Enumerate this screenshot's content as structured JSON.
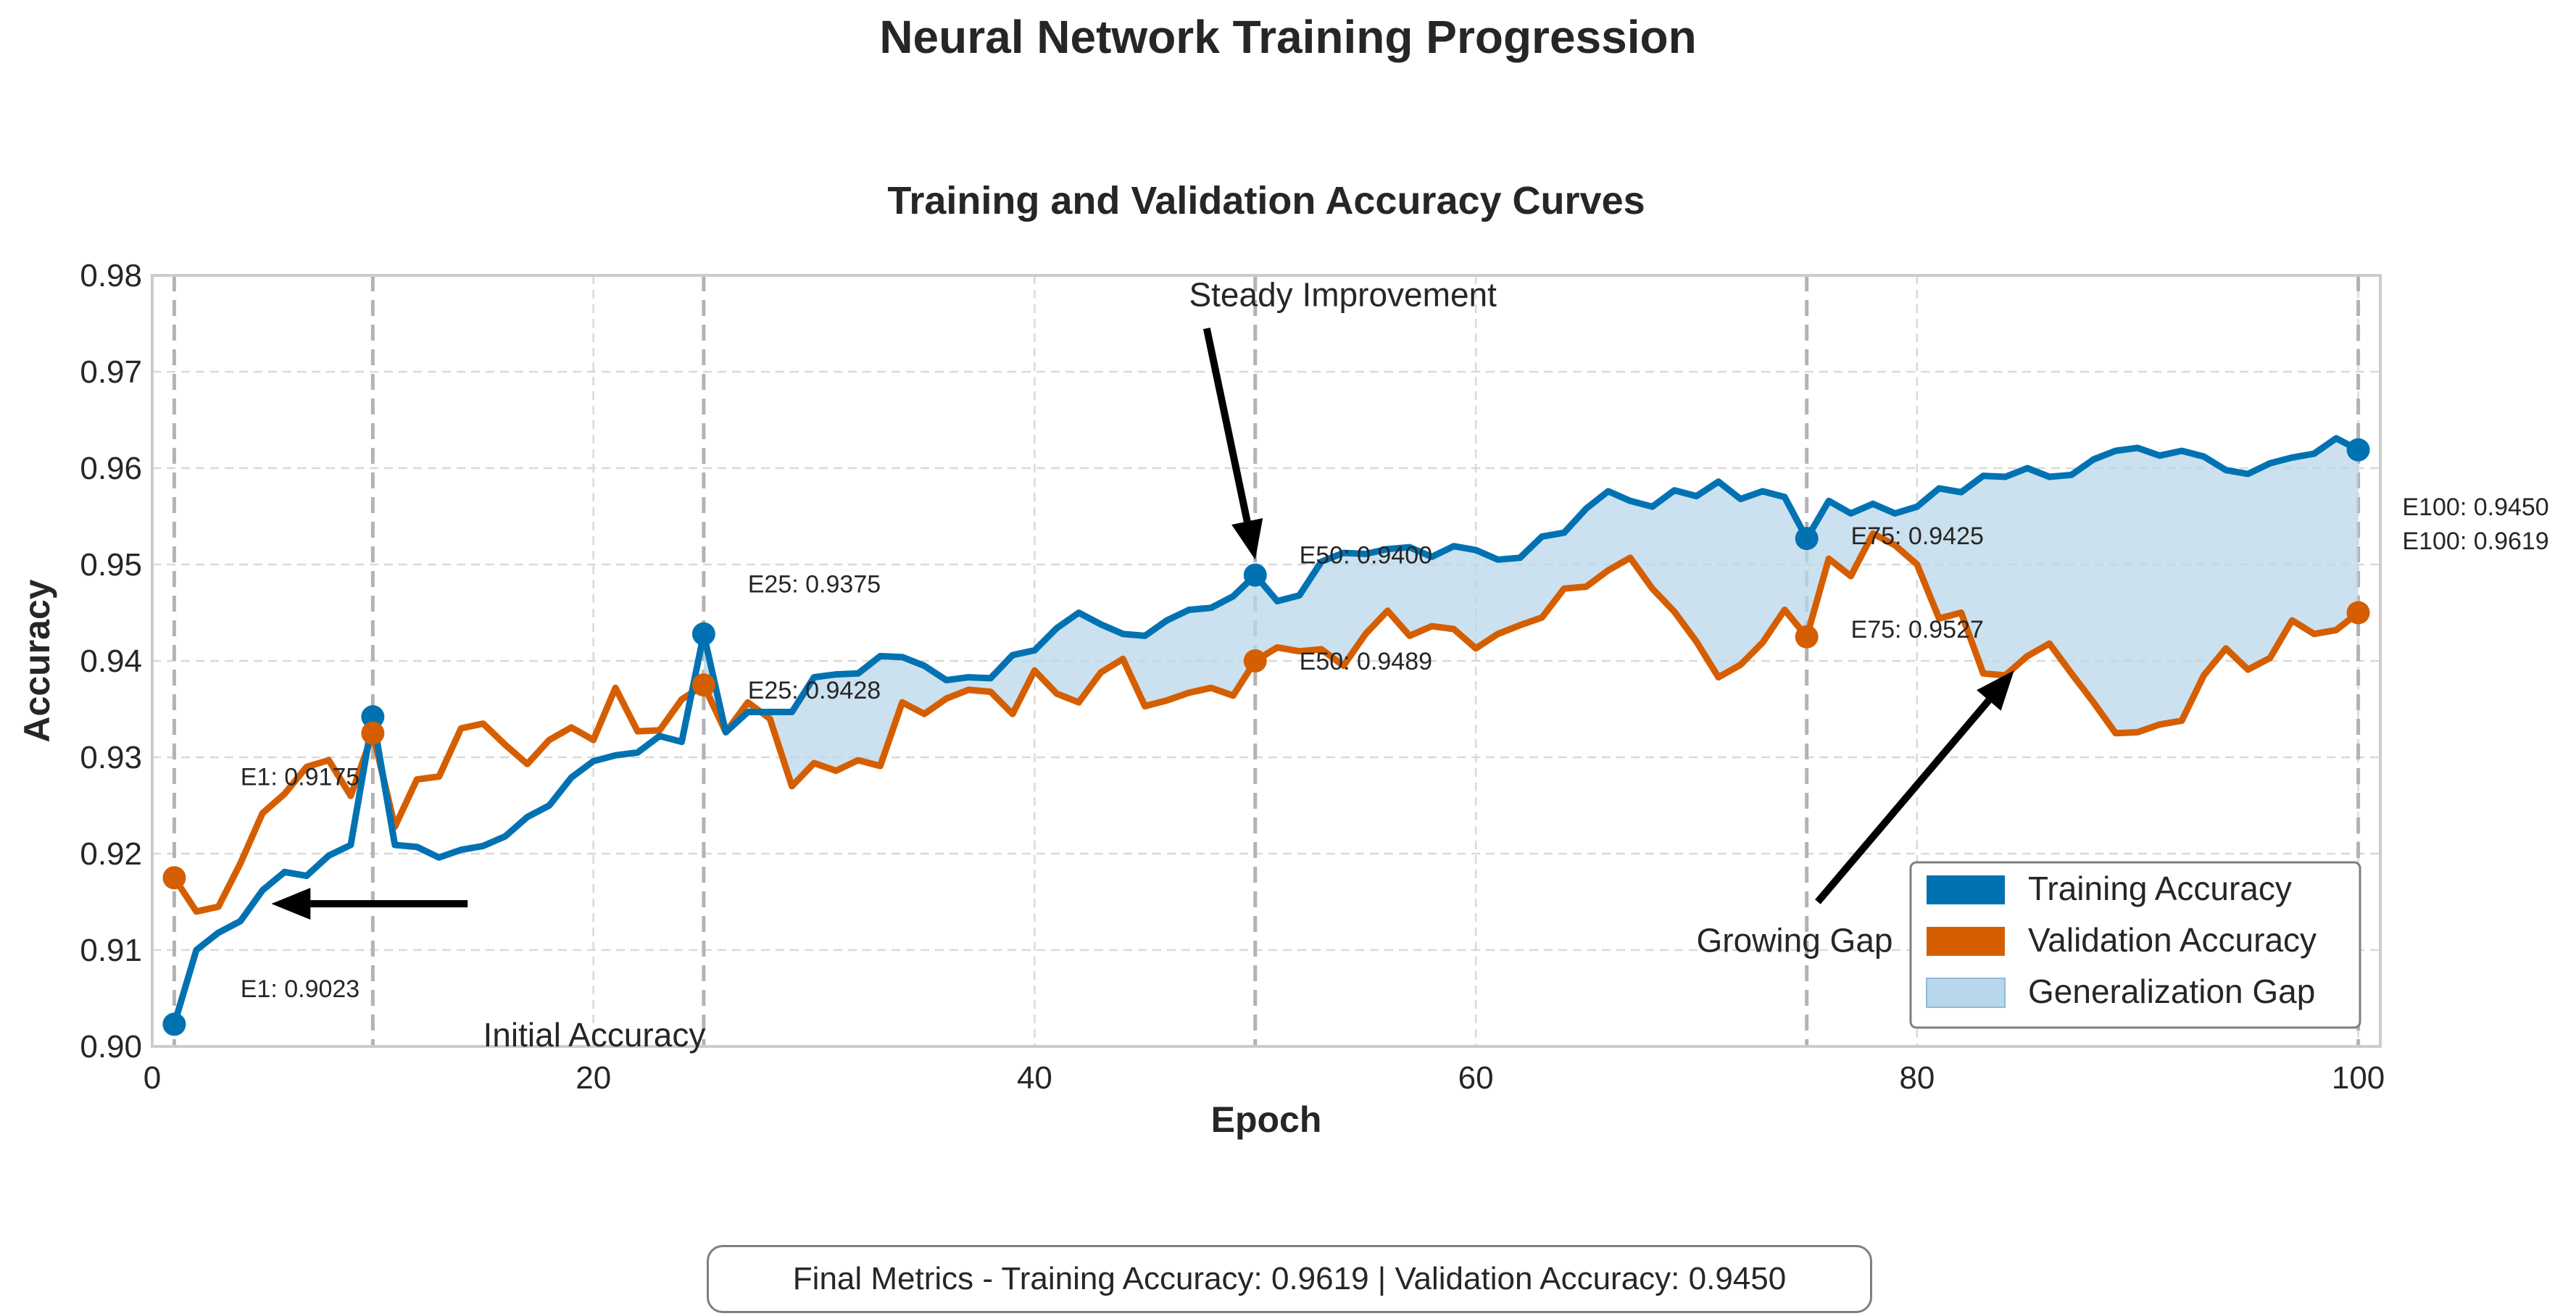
{
  "figure": {
    "title": "Neural Network Training Progression",
    "summary": "Final Metrics - Training Accuracy: 0.9619 | Validation Accuracy: 0.9450"
  },
  "colors": {
    "training": "#0072b2",
    "validation": "#d55e00",
    "gap": "#b9d7ea",
    "vline": "#b3b3b3",
    "grid": "#d9d9d9"
  },
  "chart_data": {
    "type": "line",
    "title": "Training and Validation Accuracy Curves",
    "xlabel": "Epoch",
    "ylabel": "Accuracy",
    "xlim": [
      0,
      101
    ],
    "ylim": [
      0.9,
      0.98
    ],
    "xticks": [
      "0",
      "20",
      "40",
      "60",
      "80",
      "100"
    ],
    "xtick_values": [
      0,
      20,
      40,
      60,
      80,
      100
    ],
    "yticks": [
      "0.90",
      "0.91",
      "0.92",
      "0.93",
      "0.94",
      "0.95",
      "0.96",
      "0.97",
      "0.98"
    ],
    "ytick_values": [
      0.9,
      0.91,
      0.92,
      0.93,
      0.94,
      0.95,
      0.96,
      0.97,
      0.98
    ],
    "grid": true,
    "legend_position": "lower-right",
    "milestones": [
      1,
      10,
      25,
      50,
      75,
      100
    ],
    "x": [
      1,
      2,
      3,
      4,
      5,
      6,
      7,
      8,
      9,
      10,
      11,
      12,
      13,
      14,
      15,
      16,
      17,
      18,
      19,
      20,
      21,
      22,
      23,
      24,
      25,
      26,
      27,
      28,
      29,
      30,
      31,
      32,
      33,
      34,
      35,
      36,
      37,
      38,
      39,
      40,
      41,
      42,
      43,
      44,
      45,
      46,
      47,
      48,
      49,
      50,
      51,
      52,
      53,
      54,
      55,
      56,
      57,
      58,
      59,
      60,
      61,
      62,
      63,
      64,
      65,
      66,
      67,
      68,
      69,
      70,
      71,
      72,
      73,
      74,
      75,
      76,
      77,
      78,
      79,
      80,
      81,
      82,
      83,
      84,
      85,
      86,
      87,
      88,
      89,
      90,
      91,
      92,
      93,
      94,
      95,
      96,
      97,
      98,
      99,
      100
    ],
    "series": [
      {
        "name": "Training Accuracy",
        "values": [
          0.9023,
          0.91,
          0.9118,
          0.913,
          0.9162,
          0.9181,
          0.9177,
          0.9198,
          0.9209,
          0.9342,
          0.9209,
          0.9207,
          0.9196,
          0.9204,
          0.9208,
          0.9218,
          0.9238,
          0.925,
          0.9279,
          0.9296,
          0.9302,
          0.9305,
          0.9322,
          0.9316,
          0.9428,
          0.9326,
          0.9347,
          0.9347,
          0.9347,
          0.9383,
          0.9386,
          0.9387,
          0.9405,
          0.9404,
          0.9395,
          0.938,
          0.9383,
          0.9382,
          0.9406,
          0.9411,
          0.9434,
          0.945,
          0.9438,
          0.9428,
          0.9426,
          0.9442,
          0.9453,
          0.9455,
          0.9467,
          0.9489,
          0.9462,
          0.9468,
          0.9503,
          0.9512,
          0.9511,
          0.9516,
          0.9518,
          0.9508,
          0.9519,
          0.9515,
          0.9505,
          0.9507,
          0.9529,
          0.9533,
          0.9558,
          0.9576,
          0.9566,
          0.956,
          0.9577,
          0.9571,
          0.9586,
          0.9568,
          0.9576,
          0.957,
          0.9527,
          0.9566,
          0.9553,
          0.9563,
          0.9553,
          0.956,
          0.9579,
          0.9575,
          0.9592,
          0.9591,
          0.96,
          0.9591,
          0.9593,
          0.9609,
          0.9618,
          0.9621,
          0.9613,
          0.9618,
          0.9612,
          0.9598,
          0.9594,
          0.9605,
          0.9611,
          0.9615,
          0.9631,
          0.9619
        ]
      },
      {
        "name": "Validation Accuracy",
        "values": [
          0.9175,
          0.914,
          0.9145,
          0.919,
          0.9242,
          0.9262,
          0.929,
          0.9297,
          0.926,
          0.9325,
          0.9228,
          0.9277,
          0.928,
          0.933,
          0.9335,
          0.9313,
          0.9293,
          0.9318,
          0.9331,
          0.9318,
          0.9372,
          0.9327,
          0.9328,
          0.936,
          0.9375,
          0.9326,
          0.9357,
          0.934,
          0.927,
          0.9294,
          0.9286,
          0.9297,
          0.9291,
          0.9357,
          0.9345,
          0.9361,
          0.937,
          0.9368,
          0.9345,
          0.939,
          0.9366,
          0.9357,
          0.9388,
          0.9402,
          0.9353,
          0.9359,
          0.9367,
          0.9372,
          0.9364,
          0.94,
          0.9414,
          0.941,
          0.9412,
          0.9395,
          0.9428,
          0.9452,
          0.9426,
          0.9436,
          0.9433,
          0.9413,
          0.9428,
          0.9437,
          0.9445,
          0.9475,
          0.9477,
          0.9494,
          0.9507,
          0.9475,
          0.9451,
          0.942,
          0.9383,
          0.9396,
          0.9419,
          0.9453,
          0.9425,
          0.9506,
          0.9488,
          0.9532,
          0.952,
          0.95,
          0.9444,
          0.945,
          0.9387,
          0.9385,
          0.9405,
          0.9418,
          0.9387,
          0.9357,
          0.9325,
          0.9326,
          0.9334,
          0.9338,
          0.9385,
          0.9413,
          0.9391,
          0.9403,
          0.9442,
          0.9428,
          0.9432,
          0.945
        ]
      }
    ],
    "gap_fill": {
      "name": "Generalization Gap",
      "from_epoch": 25,
      "to_epoch": 100
    },
    "markers": {
      "training": [
        {
          "epoch": 1,
          "value": 0.9023
        },
        {
          "epoch": 10,
          "value": 0.9342
        },
        {
          "epoch": 25,
          "value": 0.9428
        },
        {
          "epoch": 50,
          "value": 0.9489
        },
        {
          "epoch": 75,
          "value": 0.9527
        },
        {
          "epoch": 100,
          "value": 0.9619
        }
      ],
      "validation": [
        {
          "epoch": 1,
          "value": 0.9175
        },
        {
          "epoch": 10,
          "value": 0.9325
        },
        {
          "epoch": 25,
          "value": 0.9375
        },
        {
          "epoch": 50,
          "value": 0.94
        },
        {
          "epoch": 75,
          "value": 0.9425
        },
        {
          "epoch": 100,
          "value": 0.945
        }
      ]
    },
    "point_labels": [
      {
        "text": "E1: 0.9175",
        "x": 4,
        "y": 0.928
      },
      {
        "text": "E1: 0.9023",
        "x": 4,
        "y": 0.906
      },
      {
        "text": "E25: 0.9375",
        "x": 27,
        "y": 0.948
      },
      {
        "text": "E25: 0.9428",
        "x": 27,
        "y": 0.937
      },
      {
        "text": "E50: 0.9400",
        "x": 52,
        "y": 0.951
      },
      {
        "text": "E50: 0.9489",
        "x": 52,
        "y": 0.94
      },
      {
        "text": "E75: 0.9425",
        "x": 77,
        "y": 0.953
      },
      {
        "text": "E75: 0.9527",
        "x": 77,
        "y": 0.9433
      },
      {
        "text": "E100: 0.9450",
        "x": 102,
        "y": 0.956
      },
      {
        "text": "E100: 0.9619",
        "x": 102,
        "y": 0.9525
      }
    ],
    "annotations": [
      {
        "text": "Initial Accuracy",
        "text_x": 15,
        "text_y": 0.9012,
        "arrow_from": [
          14.3,
          0.9148
        ],
        "arrow_to": [
          5.4,
          0.9148
        ]
      },
      {
        "text": "Steady Improvement",
        "text_x": 47,
        "text_y": 0.978,
        "arrow_from": [
          47.8,
          0.9745
        ],
        "arrow_to": [
          50,
          0.9505
        ]
      },
      {
        "text": "Growing Gap",
        "text_x": 70,
        "text_y": 0.911,
        "arrow_from": [
          75.5,
          0.915
        ],
        "arrow_to": [
          84.4,
          0.939
        ]
      }
    ],
    "legend": [
      {
        "label": "Training Accuracy",
        "kind": "training"
      },
      {
        "label": "Validation Accuracy",
        "kind": "validation"
      },
      {
        "label": "Generalization Gap",
        "kind": "gap"
      }
    ]
  }
}
